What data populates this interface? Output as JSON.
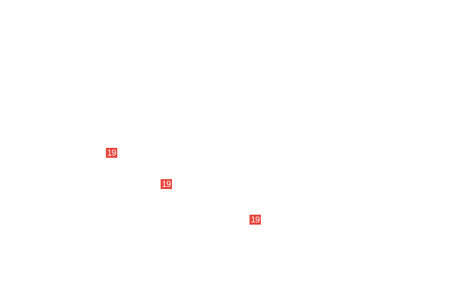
{
  "colors": {
    "badge_bg": "#e8453c",
    "badge_text": "#ffffff"
  },
  "badges": [
    {
      "label": "19"
    },
    {
      "label": "19"
    },
    {
      "label": "19"
    }
  ]
}
